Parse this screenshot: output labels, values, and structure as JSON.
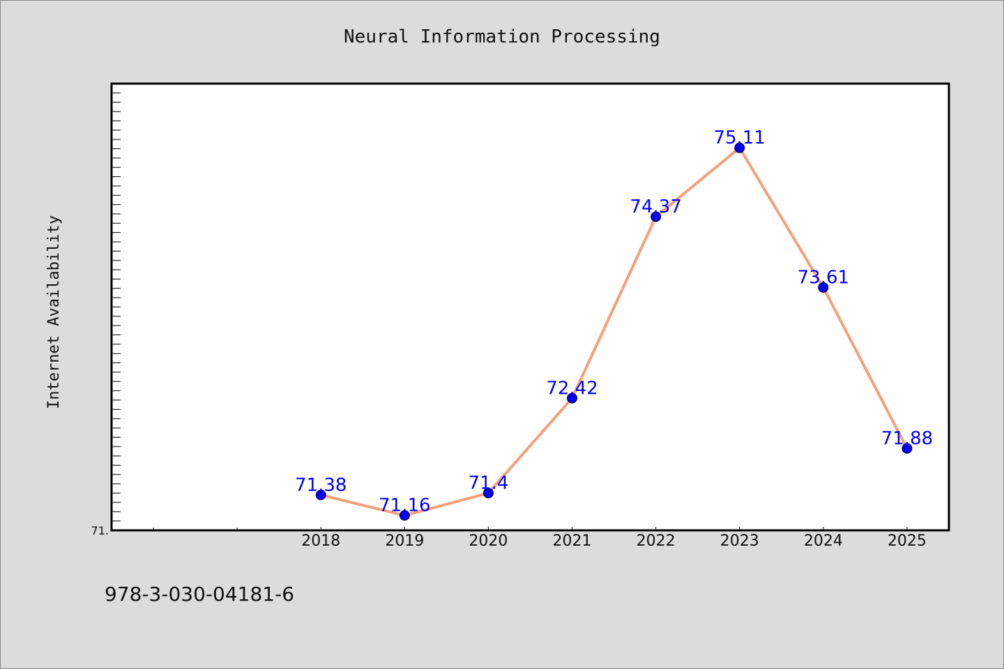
{
  "chart_data": {
    "type": "line",
    "title": "Neural Information Processing",
    "xlabel": "",
    "ylabel": "Internet Availability",
    "categories": [
      "2018",
      "2019",
      "2020",
      "2021",
      "2022",
      "2023",
      "2024",
      "2025"
    ],
    "series": [
      {
        "values": [
          71.38,
          71.16,
          71.4,
          72.42,
          74.37,
          75.11,
          73.61,
          71.88
        ],
        "labels": [
          "71.38",
          "71.16",
          "71.4",
          "72.42",
          "74.37",
          "75.11",
          "73.61",
          "71.88"
        ]
      }
    ],
    "ylim": [
      71.0,
      75.8
    ],
    "xlim": [
      -2.5,
      7.5
    ],
    "y_tick_labels": [
      "71."
    ],
    "grid": false,
    "legend": "none",
    "line_color": "#f4a07a",
    "marker_color": "#0000ee",
    "label_color": "#0000ff",
    "plot_background": "#ffffff",
    "page_background": "#dcdcdc"
  },
  "footer": {
    "isbn": "978-3-030-04181-6"
  }
}
